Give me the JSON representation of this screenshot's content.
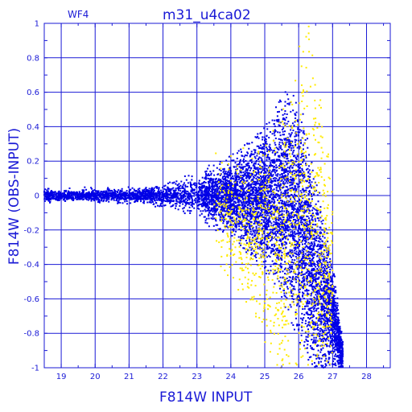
{
  "chart_data": {
    "type": "scatter",
    "title": "m31_u4ca02",
    "panel_label": "WF4",
    "xlabel": "F814W INPUT",
    "ylabel": "F814W (OBS-INPUT)",
    "xlim": [
      18.5,
      28.7
    ],
    "ylim": [
      -1,
      1
    ],
    "x_ticks": [
      "19",
      "20",
      "21",
      "22",
      "23",
      "24",
      "25",
      "26",
      "27",
      "28"
    ],
    "y_ticks": [
      "1",
      "0.8",
      "0.6",
      "0.4",
      "0.2",
      "0",
      "-0.2",
      "-0.4",
      "-0.6",
      "-0.8",
      "-1"
    ],
    "grid": true,
    "colors": {
      "axis": "#1a1ad6",
      "series_main": "#0000e6",
      "series_flagged": "#ffea00"
    },
    "series": [
      {
        "color": "blue",
        "envelope": [
          {
            "x": 18.5,
            "y_low": -0.03,
            "y_high": 0.03
          },
          {
            "x": 20.0,
            "y_low": -0.03,
            "y_high": 0.03
          },
          {
            "x": 21.0,
            "y_low": -0.035,
            "y_high": 0.035
          },
          {
            "x": 22.0,
            "y_low": -0.05,
            "y_high": 0.05
          },
          {
            "x": 23.0,
            "y_low": -0.1,
            "y_high": 0.1
          },
          {
            "x": 24.0,
            "y_low": -0.2,
            "y_high": 0.18
          },
          {
            "x": 25.0,
            "y_low": -0.4,
            "y_high": 0.35
          },
          {
            "x": 25.5,
            "y_low": -0.55,
            "y_high": 0.6
          },
          {
            "x": 26.0,
            "y_low": -0.8,
            "y_high": 0.55
          },
          {
            "x": 26.5,
            "y_low": -1.0,
            "y_high": 0.1
          },
          {
            "x": 27.0,
            "y_low": -1.0,
            "y_high": -0.4
          },
          {
            "x": 27.3,
            "y_low": -1.0,
            "y_high": -0.85
          }
        ]
      },
      {
        "color": "yellow",
        "envelope": [
          {
            "x": 23.5,
            "y_low": -0.3,
            "y_high": 0.3
          },
          {
            "x": 24.5,
            "y_low": -0.6,
            "y_high": 0.3
          },
          {
            "x": 25.5,
            "y_low": -1.0,
            "y_high": 0.5
          },
          {
            "x": 26.3,
            "y_low": -1.0,
            "y_high": 1.0
          },
          {
            "x": 27.0,
            "y_low": -1.0,
            "y_high": 0.2
          }
        ]
      }
    ]
  }
}
